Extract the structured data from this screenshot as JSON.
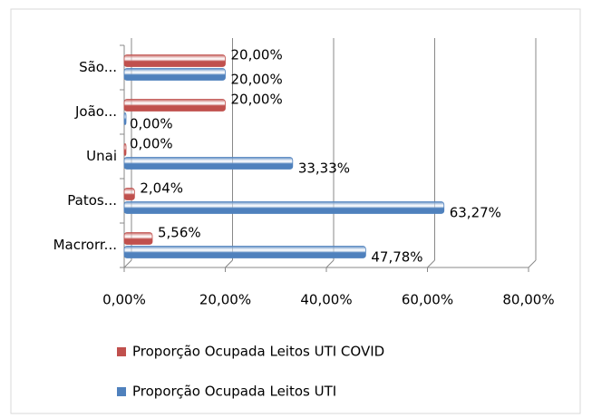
{
  "chart_data": {
    "type": "bar",
    "orientation": "horizontal",
    "categories": [
      "Macrorr...",
      "Patos...",
      "Unai",
      "João...",
      "São..."
    ],
    "series": [
      {
        "name": "Proporção Ocupada Leitos UTI COVID",
        "color": "#c0504d",
        "values": [
          5.56,
          2.04,
          0,
          20,
          20
        ],
        "value_labels": [
          "5,56%",
          "2,04%",
          "0,00%",
          "20,00%",
          "20,00%"
        ]
      },
      {
        "name": "Proporção Ocupada Leitos UTI",
        "color": "#4f81bd",
        "values": [
          47.78,
          63.27,
          33.33,
          0,
          20
        ],
        "value_labels": [
          "47,78%",
          "63,27%",
          "33,33%",
          "0,00%",
          "20,00%"
        ]
      }
    ],
    "xlim": [
      0,
      80
    ],
    "xticks": [
      {
        "value": 0,
        "label": "0,00%"
      },
      {
        "value": 20,
        "label": "20,00%"
      },
      {
        "value": 40,
        "label": "40,00%"
      },
      {
        "value": 60,
        "label": "60,00%"
      },
      {
        "value": 80,
        "label": "80,00%"
      }
    ],
    "grid": true,
    "legend": "bottom"
  }
}
